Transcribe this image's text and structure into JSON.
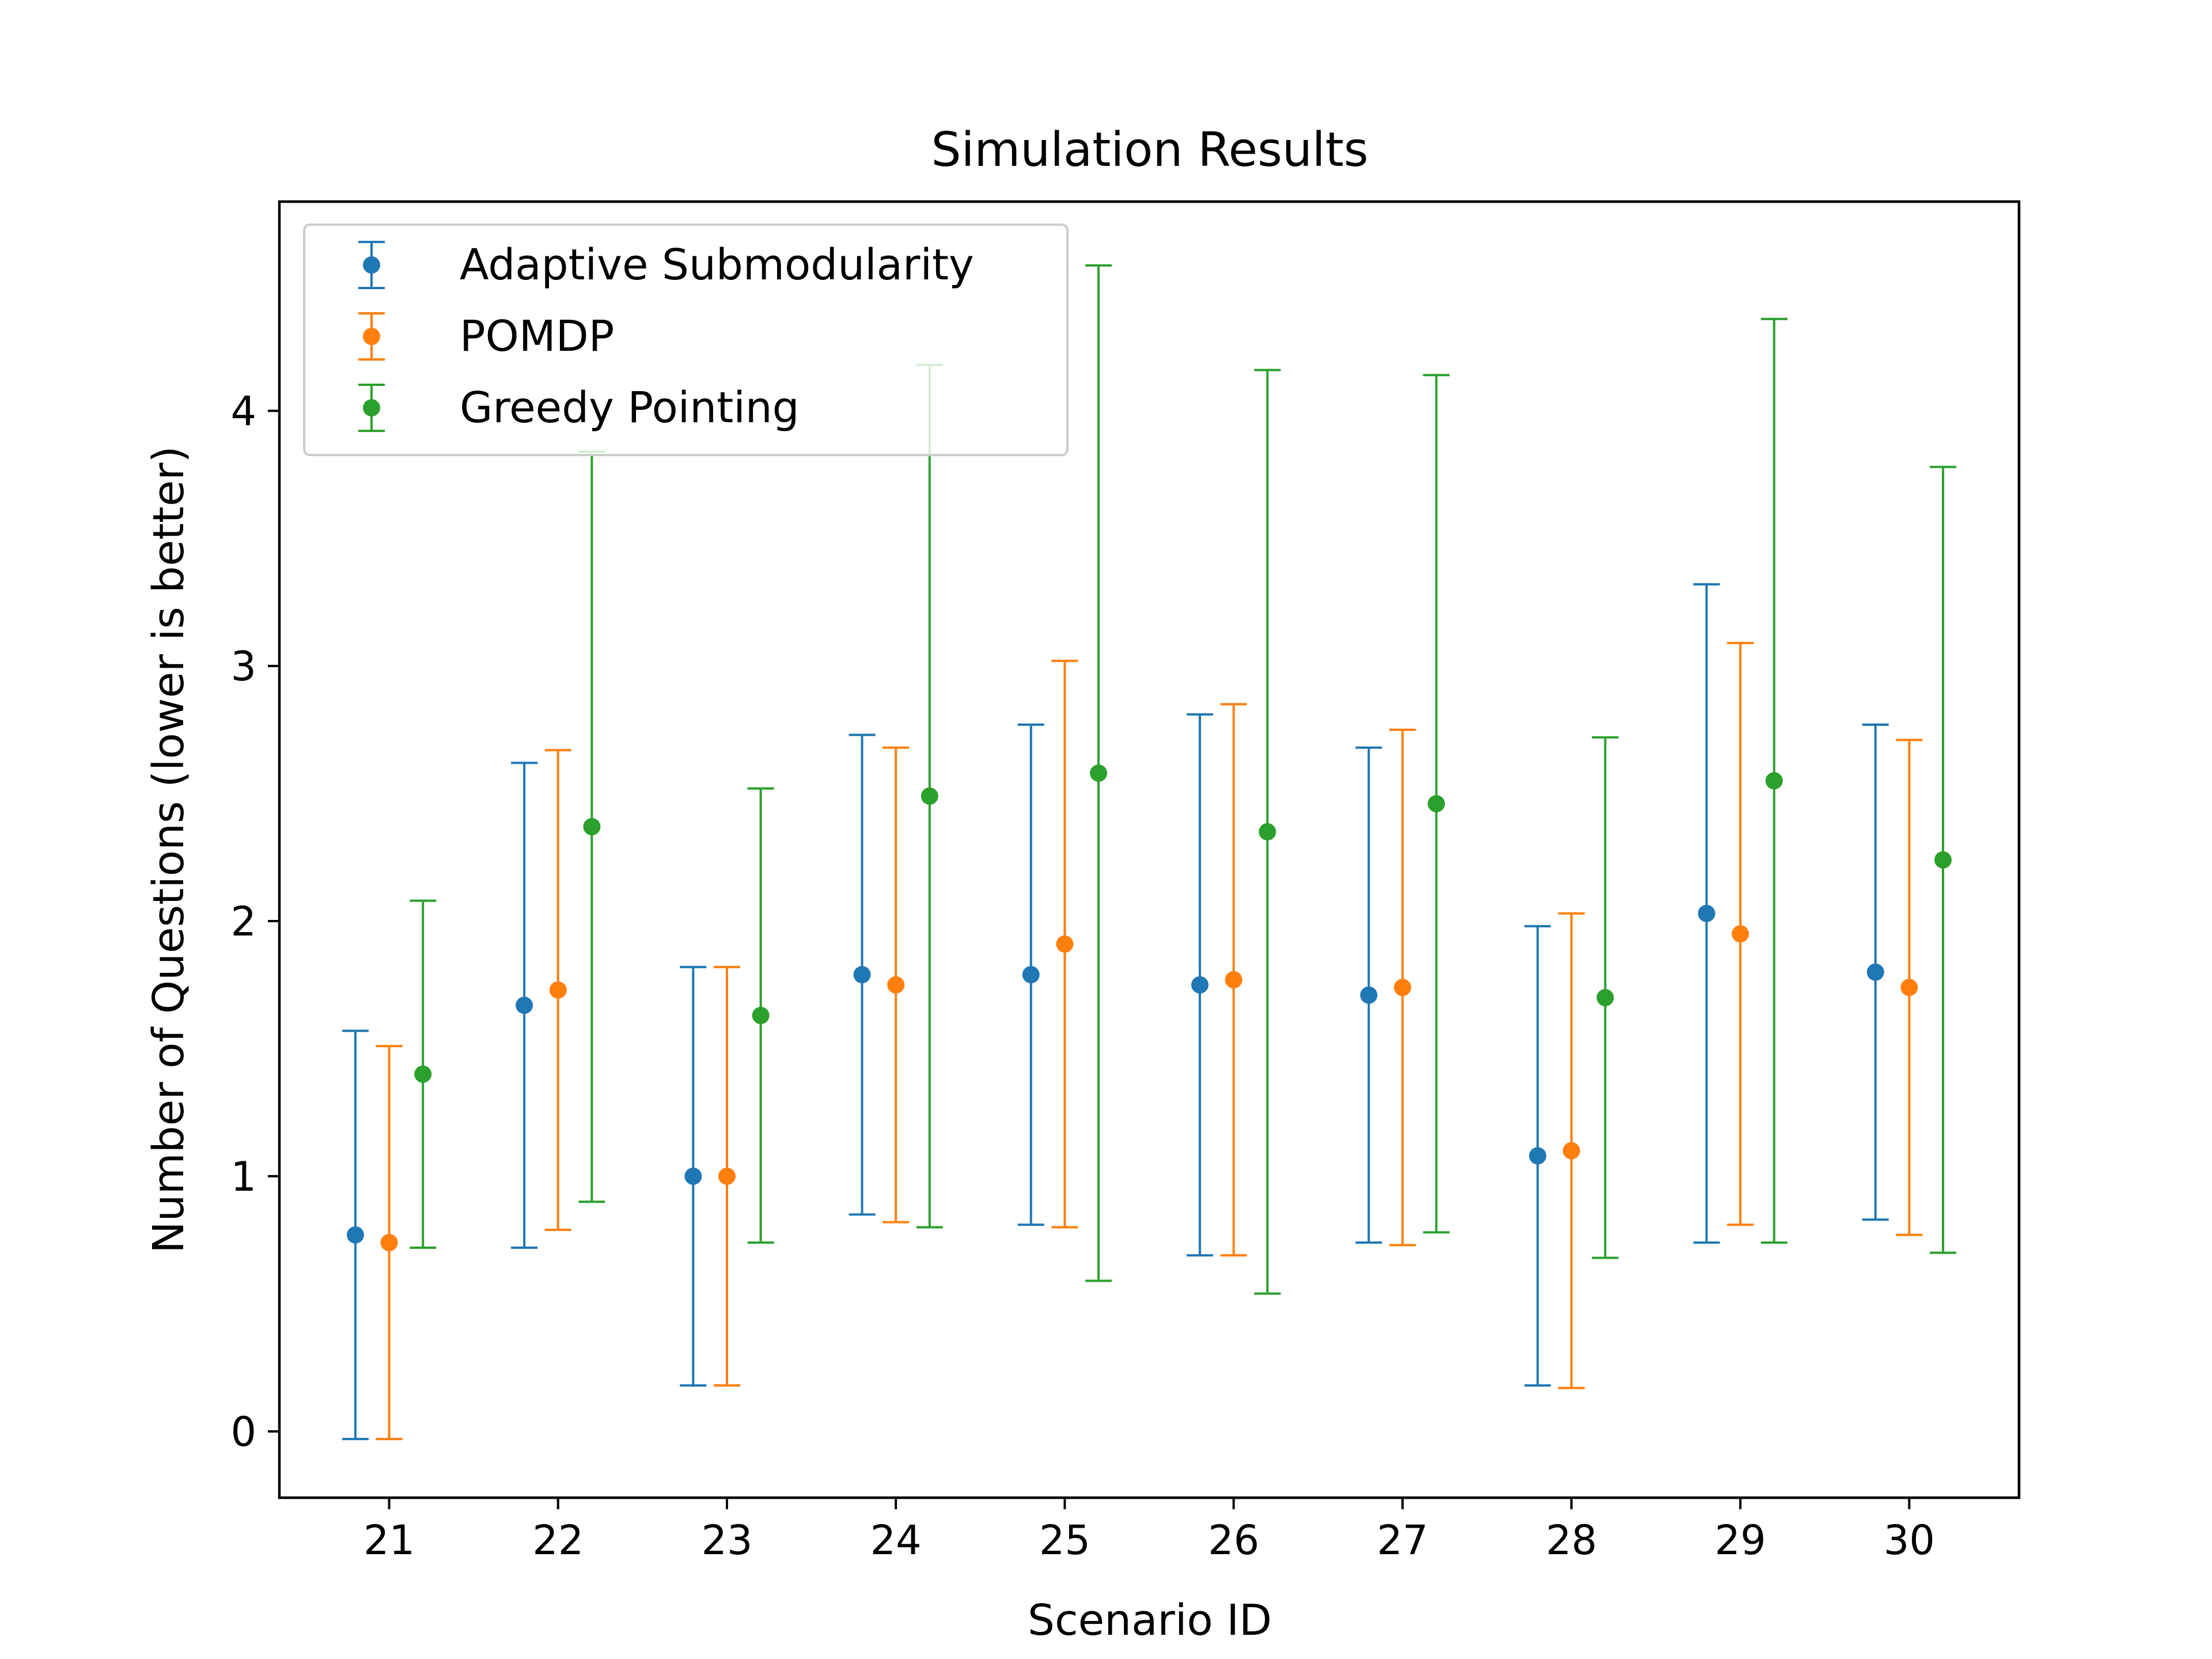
{
  "chart_data": {
    "type": "scatter",
    "title": "Simulation Results",
    "xlabel": "Scenario ID",
    "ylabel": "Number of Questions (lower is better)",
    "categories": [
      "21",
      "22",
      "23",
      "24",
      "25",
      "26",
      "27",
      "28",
      "29",
      "30"
    ],
    "x": [
      21,
      22,
      23,
      24,
      25,
      26,
      27,
      28,
      29,
      30
    ],
    "y_ticks": [
      "0",
      "1",
      "2",
      "3",
      "4"
    ],
    "xlim": [
      20.35,
      30.65
    ],
    "ylim": [
      -0.26,
      4.82
    ],
    "legend_position": "top-left",
    "grid": false,
    "series": [
      {
        "name": "Adaptive Submodularity",
        "color": "#1f77b4",
        "offset": -0.2,
        "values": [
          0.77,
          1.67,
          1.0,
          1.79,
          1.79,
          1.75,
          1.71,
          1.08,
          2.03,
          1.8
        ],
        "error": [
          0.8,
          0.95,
          0.82,
          0.94,
          0.98,
          1.06,
          0.97,
          0.9,
          1.29,
          0.97
        ]
      },
      {
        "name": "POMDP",
        "color": "#ff7f0e",
        "offset": 0.0,
        "values": [
          0.74,
          1.73,
          1.0,
          1.75,
          1.91,
          1.77,
          1.74,
          1.1,
          1.95,
          1.74
        ],
        "error": [
          0.77,
          0.94,
          0.82,
          0.93,
          1.11,
          1.08,
          1.01,
          0.93,
          1.14,
          0.97
        ]
      },
      {
        "name": "Greedy Pointing",
        "color": "#2ca02c",
        "offset": 0.2,
        "values": [
          1.4,
          2.37,
          1.63,
          2.49,
          2.58,
          2.35,
          2.46,
          1.7,
          2.55,
          2.24
        ],
        "error": [
          0.68,
          1.47,
          0.89,
          1.69,
          1.99,
          1.81,
          1.68,
          1.02,
          1.81,
          1.54
        ]
      }
    ]
  }
}
